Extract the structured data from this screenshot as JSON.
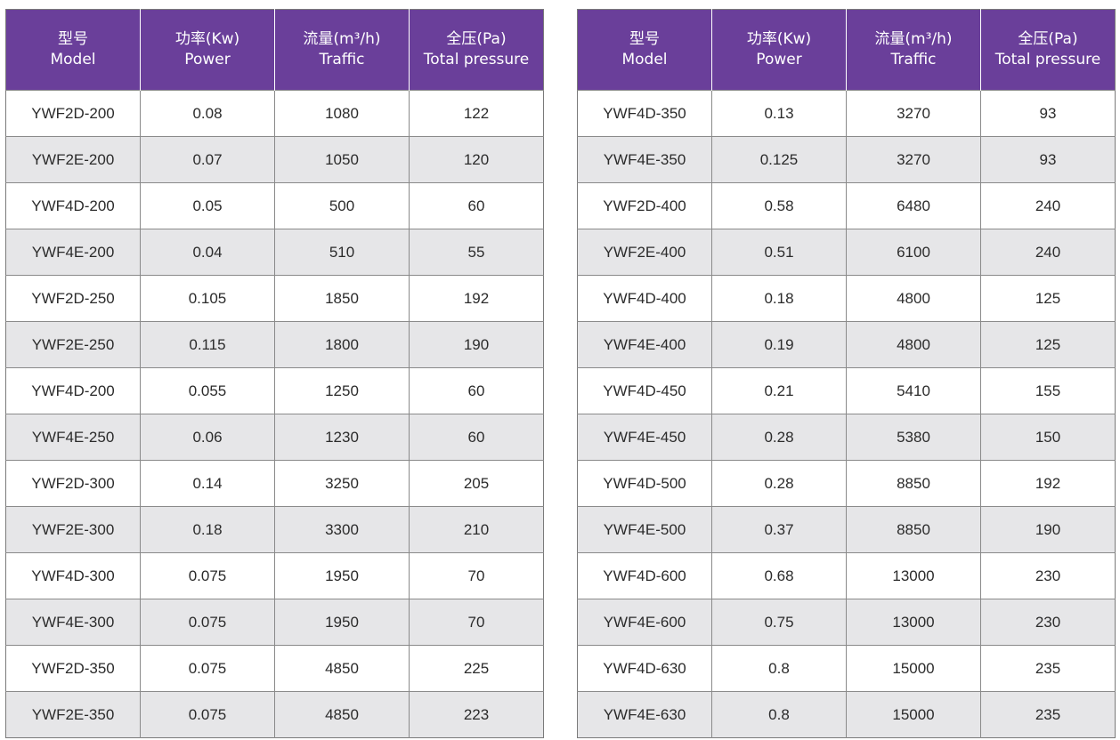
{
  "headers": [
    {
      "zh": "型号",
      "en": "Model"
    },
    {
      "zh": "功率(Kw)",
      "en": "Power"
    },
    {
      "zh": "流量(m³/h)",
      "en": "Traffic"
    },
    {
      "zh": "全压(Pa)",
      "en": "Total pressure"
    }
  ],
  "tables": [
    {
      "rows": [
        [
          "YWF2D-200",
          "0.08",
          "1080",
          "122"
        ],
        [
          "YWF2E-200",
          "0.07",
          "1050",
          "120"
        ],
        [
          "YWF4D-200",
          "0.05",
          "500",
          "60"
        ],
        [
          "YWF4E-200",
          "0.04",
          "510",
          "55"
        ],
        [
          "YWF2D-250",
          "0.105",
          "1850",
          "192"
        ],
        [
          "YWF2E-250",
          "0.115",
          "1800",
          "190"
        ],
        [
          "YWF4D-200",
          "0.055",
          "1250",
          "60"
        ],
        [
          "YWF4E-250",
          "0.06",
          "1230",
          "60"
        ],
        [
          "YWF2D-300",
          "0.14",
          "3250",
          "205"
        ],
        [
          "YWF2E-300",
          "0.18",
          "3300",
          "210"
        ],
        [
          "YWF4D-300",
          "0.075",
          "1950",
          "70"
        ],
        [
          "YWF4E-300",
          "0.075",
          "1950",
          "70"
        ],
        [
          "YWF2D-350",
          "0.075",
          "4850",
          "225"
        ],
        [
          "YWF2E-350",
          "0.075",
          "4850",
          "223"
        ]
      ]
    },
    {
      "rows": [
        [
          "YWF4D-350",
          "0.13",
          "3270",
          "93"
        ],
        [
          "YWF4E-350",
          "0.125",
          "3270",
          "93"
        ],
        [
          "YWF2D-400",
          "0.58",
          "6480",
          "240"
        ],
        [
          "YWF2E-400",
          "0.51",
          "6100",
          "240"
        ],
        [
          "YWF4D-400",
          "0.18",
          "4800",
          "125"
        ],
        [
          "YWF4E-400",
          "0.19",
          "4800",
          "125"
        ],
        [
          "YWF4D-450",
          "0.21",
          "5410",
          "155"
        ],
        [
          "YWF4E-450",
          "0.28",
          "5380",
          "150"
        ],
        [
          "YWF4D-500",
          "0.28",
          "8850",
          "192"
        ],
        [
          "YWF4E-500",
          "0.37",
          "8850",
          "190"
        ],
        [
          "YWF4D-600",
          "0.68",
          "13000",
          "230"
        ],
        [
          "YWF4E-600",
          "0.75",
          "13000",
          "230"
        ],
        [
          "YWF4D-630",
          "0.8",
          "15000",
          "235"
        ],
        [
          "YWF4E-630",
          "0.8",
          "15000",
          "235"
        ]
      ]
    }
  ]
}
